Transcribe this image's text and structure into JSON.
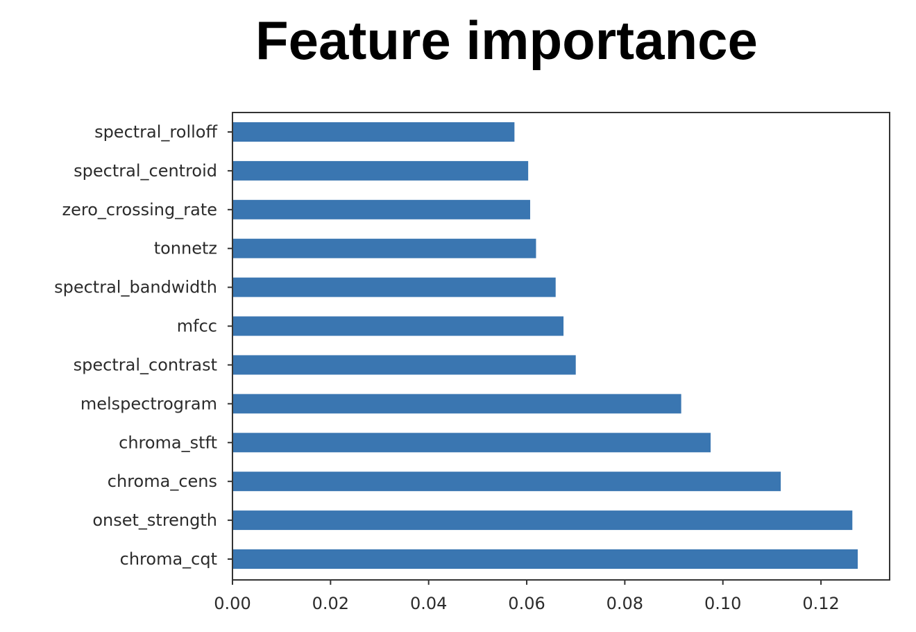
{
  "title": "Feature importance",
  "chart_data": {
    "type": "bar",
    "orientation": "horizontal",
    "categories": [
      "spectral_rolloff",
      "spectral_centroid",
      "zero_crossing_rate",
      "tonnetz",
      "spectral_bandwidth",
      "mfcc",
      "spectral_contrast",
      "melspectrogram",
      "chroma_stft",
      "chroma_cens",
      "onset_strength",
      "chroma_cqt"
    ],
    "values": [
      0.0575,
      0.0603,
      0.0607,
      0.0619,
      0.0659,
      0.0675,
      0.07,
      0.0915,
      0.0975,
      0.1118,
      0.1264,
      0.1275
    ],
    "xticks": [
      "0.00",
      "0.02",
      "0.04",
      "0.06",
      "0.08",
      "0.10",
      "0.12"
    ],
    "xlim": [
      0,
      0.134
    ],
    "xlabel": "",
    "ylabel": "",
    "grid": false,
    "bar_color": "#3a76b1"
  }
}
